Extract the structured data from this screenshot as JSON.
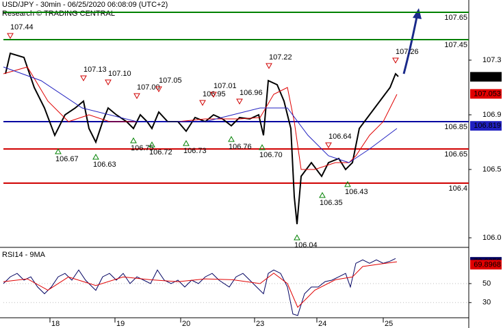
{
  "chart_data": [
    {
      "type": "line",
      "title": "USD/JPY - 30min - 06/25/2020 06:08:09 (UTC+2)",
      "subtitle": "Research © TRADING CENTRAL",
      "xlim": [
        0,
        340
      ],
      "ylim": [
        105.94,
        107.715
      ],
      "yticks": [
        {
          "value": 106.0,
          "label": "106.0"
        },
        106.5,
        106.9,
        107.3
      ],
      "levels": [
        {
          "value": 107.65,
          "color": "#008000"
        },
        {
          "value": 107.45,
          "color": "#008000"
        },
        {
          "value": 106.85,
          "color": "#0000a0"
        },
        {
          "value": 106.65,
          "color": "#d00000"
        },
        {
          "value": 106.4,
          "color": "#d00000"
        }
      ],
      "series": [
        {
          "color": "#000000",
          "width": 2,
          "last": 107.178,
          "x": [
            1.5,
            5,
            15,
            22.5,
            30,
            37.5,
            45,
            52.5,
            58.5,
            62.5,
            67.5,
            72.5,
            76.5,
            82.5,
            90,
            95,
            100,
            105,
            108.5,
            113.5,
            120,
            127.5,
            133.5,
            140,
            147.5,
            153.5,
            160,
            166.5,
            172.5,
            180,
            186.5,
            190,
            193.5,
            200,
            205,
            210,
            212.5,
            214.5,
            217.5,
            225,
            232.5,
            237.5,
            245,
            250,
            255,
            260,
            267.5,
            275,
            282.5,
            286.5,
            288.5
          ],
          "values": [
            107.2,
            107.35,
            107.32,
            107.1,
            106.95,
            106.75,
            106.9,
            106.95,
            107.0,
            106.8,
            106.7,
            106.85,
            106.95,
            106.9,
            106.85,
            106.8,
            106.9,
            106.85,
            106.8,
            106.92,
            106.85,
            106.85,
            106.78,
            106.88,
            106.85,
            106.9,
            106.87,
            106.82,
            106.88,
            106.87,
            106.9,
            106.75,
            107.15,
            107.12,
            107.0,
            106.8,
            106.3,
            106.1,
            106.45,
            106.55,
            106.45,
            106.55,
            106.58,
            106.5,
            106.55,
            106.8,
            106.9,
            107.0,
            107.1,
            107.2,
            107.18
          ]
        },
        {
          "color": "#e00000",
          "width": 1,
          "last": 107.053,
          "x": [
            0,
            17.5,
            32.5,
            47.5,
            62.5,
            77.5,
            97.5,
            127.5,
            147.5,
            172.5,
            187.5,
            197.5,
            207.5,
            212.5,
            217.5,
            227.5,
            242.5,
            252.5,
            257.5,
            267.5,
            277.5,
            287.5
          ],
          "values": [
            107.2,
            107.25,
            107.0,
            106.85,
            106.9,
            106.85,
            106.85,
            106.85,
            106.87,
            106.87,
            106.88,
            107.05,
            107.1,
            106.85,
            106.5,
            106.5,
            106.55,
            106.55,
            106.6,
            106.75,
            106.85,
            107.05
          ]
        },
        {
          "color": "#2020c0",
          "width": 1,
          "last": 106.819,
          "x": [
            0,
            27.5,
            57.5,
            97.5,
            147.5,
            187.5,
            207.5,
            222.5,
            237.5,
            252.5,
            267.5,
            287.5
          ],
          "values": [
            107.25,
            107.15,
            106.95,
            106.85,
            106.85,
            106.95,
            106.95,
            106.75,
            106.6,
            106.55,
            106.65,
            106.8
          ]
        }
      ],
      "highs": [
        {
          "x": 5,
          "value": 107.44,
          "label": "107.44"
        },
        {
          "x": 58.5,
          "value": 107.13,
          "label": "107.13"
        },
        {
          "x": 76.5,
          "value": 107.1,
          "label": "107.10"
        },
        {
          "x": 97.5,
          "value": 107.0,
          "label": "107.00"
        },
        {
          "x": 113.5,
          "value": 107.05,
          "label": "107.05"
        },
        {
          "x": 145.5,
          "value": 106.95,
          "label": "106.95"
        },
        {
          "x": 153.5,
          "value": 107.01,
          "label": "107.01"
        },
        {
          "x": 172.5,
          "value": 106.96,
          "label": "106.96"
        },
        {
          "x": 194,
          "value": 107.22,
          "label": "107.22"
        },
        {
          "x": 237.5,
          "value": 106.64,
          "label": "106.64"
        },
        {
          "x": 286.5,
          "value": 107.26,
          "label": "107.26"
        }
      ],
      "lows": [
        {
          "x": 40,
          "value": 106.67,
          "label": "106.67"
        },
        {
          "x": 67.5,
          "value": 106.63,
          "label": "106.63"
        },
        {
          "x": 95,
          "value": 106.75,
          "label": "106.75"
        },
        {
          "x": 108.5,
          "value": 106.72,
          "label": "106.72"
        },
        {
          "x": 133.5,
          "value": 106.73,
          "label": "106.73"
        },
        {
          "x": 166.5,
          "value": 106.76,
          "label": "106.76"
        },
        {
          "x": 189,
          "value": 106.7,
          "label": "106.70"
        },
        {
          "x": 214.5,
          "value": 106.04,
          "label": "106.04"
        },
        {
          "x": 233,
          "value": 106.35,
          "label": "106.35"
        },
        {
          "x": 251.5,
          "value": 106.43,
          "label": "106.43"
        }
      ]
    },
    {
      "type": "line",
      "title": "RSI14 - 9MA",
      "xlim": [
        0,
        340
      ],
      "xticks": [
        {
          "value": 34,
          "label": "18"
        },
        {
          "value": 81.5,
          "label": "19"
        },
        {
          "value": 129.5,
          "label": "20"
        },
        {
          "value": 183.5,
          "label": "23"
        },
        {
          "value": 229,
          "label": "24"
        },
        {
          "value": 277.5,
          "label": "25"
        }
      ],
      "ylim": [
        14,
        86
      ],
      "yticks": [
        30,
        50
      ],
      "series": [
        {
          "color": "#000060",
          "width": 1,
          "last": 72.9059,
          "x": [
            0,
            5,
            10,
            15,
            20,
            25,
            30,
            35,
            40,
            45,
            50,
            55,
            60,
            65,
            67.5,
            72.5,
            77.5,
            82.5,
            87.5,
            92.5,
            97.5,
            102.5,
            107.5,
            112.5,
            117.5,
            122.5,
            127.5,
            132.5,
            137.5,
            142.5,
            147.5,
            152.5,
            157.5,
            165,
            170,
            175,
            180,
            185,
            190,
            193.5,
            197.5,
            202.5,
            207.5,
            211.5,
            215,
            220,
            225,
            230,
            235,
            240,
            245,
            250,
            253.5,
            257.5,
            262.5,
            267.5,
            272.5,
            277.5,
            282.5,
            286.5
          ],
          "values": [
            50,
            57.1,
            60.7,
            53.6,
            57.1,
            46.4,
            39.3,
            46.4,
            57.1,
            60.7,
            53.6,
            64.3,
            53.6,
            46.4,
            42.9,
            57.1,
            60.7,
            53.6,
            60.7,
            50,
            57.1,
            53.6,
            50,
            64.3,
            53.6,
            50,
            53.6,
            46.4,
            53.6,
            50,
            57.1,
            60.7,
            53.6,
            46.4,
            57.1,
            60.7,
            53.6,
            46.4,
            39.3,
            60.7,
            64.3,
            60.7,
            46.4,
            17.9,
            16.4,
            39.3,
            46.4,
            46.4,
            52.1,
            53.6,
            57.1,
            60.7,
            46.4,
            71.4,
            75,
            71.4,
            75,
            71.4,
            73.6,
            76.4
          ]
        },
        {
          "color": "#e00000",
          "width": 1,
          "last": 69.8968,
          "x": [
            0,
            17.5,
            32.5,
            47.5,
            67.5,
            87.5,
            107.5,
            127.5,
            147.5,
            167.5,
            187.5,
            197.5,
            207.5,
            215,
            227.5,
            242.5,
            255,
            262.5,
            277.5,
            287.5
          ],
          "values": [
            52,
            55,
            43,
            57,
            48,
            57,
            54,
            52,
            55,
            54,
            50,
            61,
            50,
            25,
            43,
            54,
            57,
            68,
            71,
            73
          ]
        }
      ]
    }
  ]
}
